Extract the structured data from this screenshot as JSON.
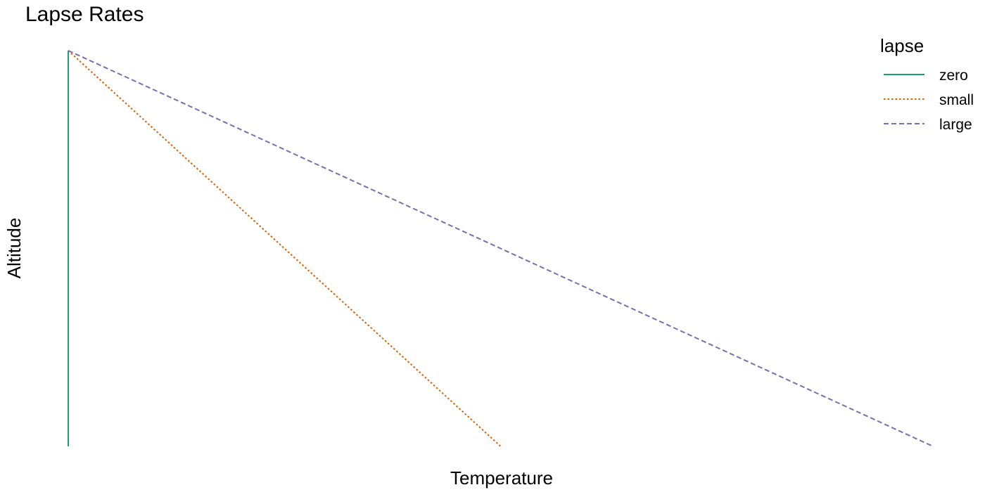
{
  "chart_data": {
    "type": "line",
    "title": "Lapse Rates",
    "xlabel": "Temperature",
    "ylabel": "Altitude",
    "grid": false,
    "legend_position": "top-right",
    "legend_title": "lapse",
    "xlim": [
      0,
      1
    ],
    "ylim": [
      0,
      1
    ],
    "series": [
      {
        "name": "zero",
        "x": [
          0,
          0
        ],
        "y": [
          1,
          0
        ],
        "color": "#1B9E77",
        "linestyle": "solid"
      },
      {
        "name": "small",
        "x": [
          0,
          0.5
        ],
        "y": [
          1,
          0
        ],
        "color": "#D95F02",
        "linestyle": "dotted"
      },
      {
        "name": "large",
        "x": [
          0,
          1
        ],
        "y": [
          1,
          0
        ],
        "color": "#7570B3",
        "linestyle": "dashed"
      }
    ]
  }
}
